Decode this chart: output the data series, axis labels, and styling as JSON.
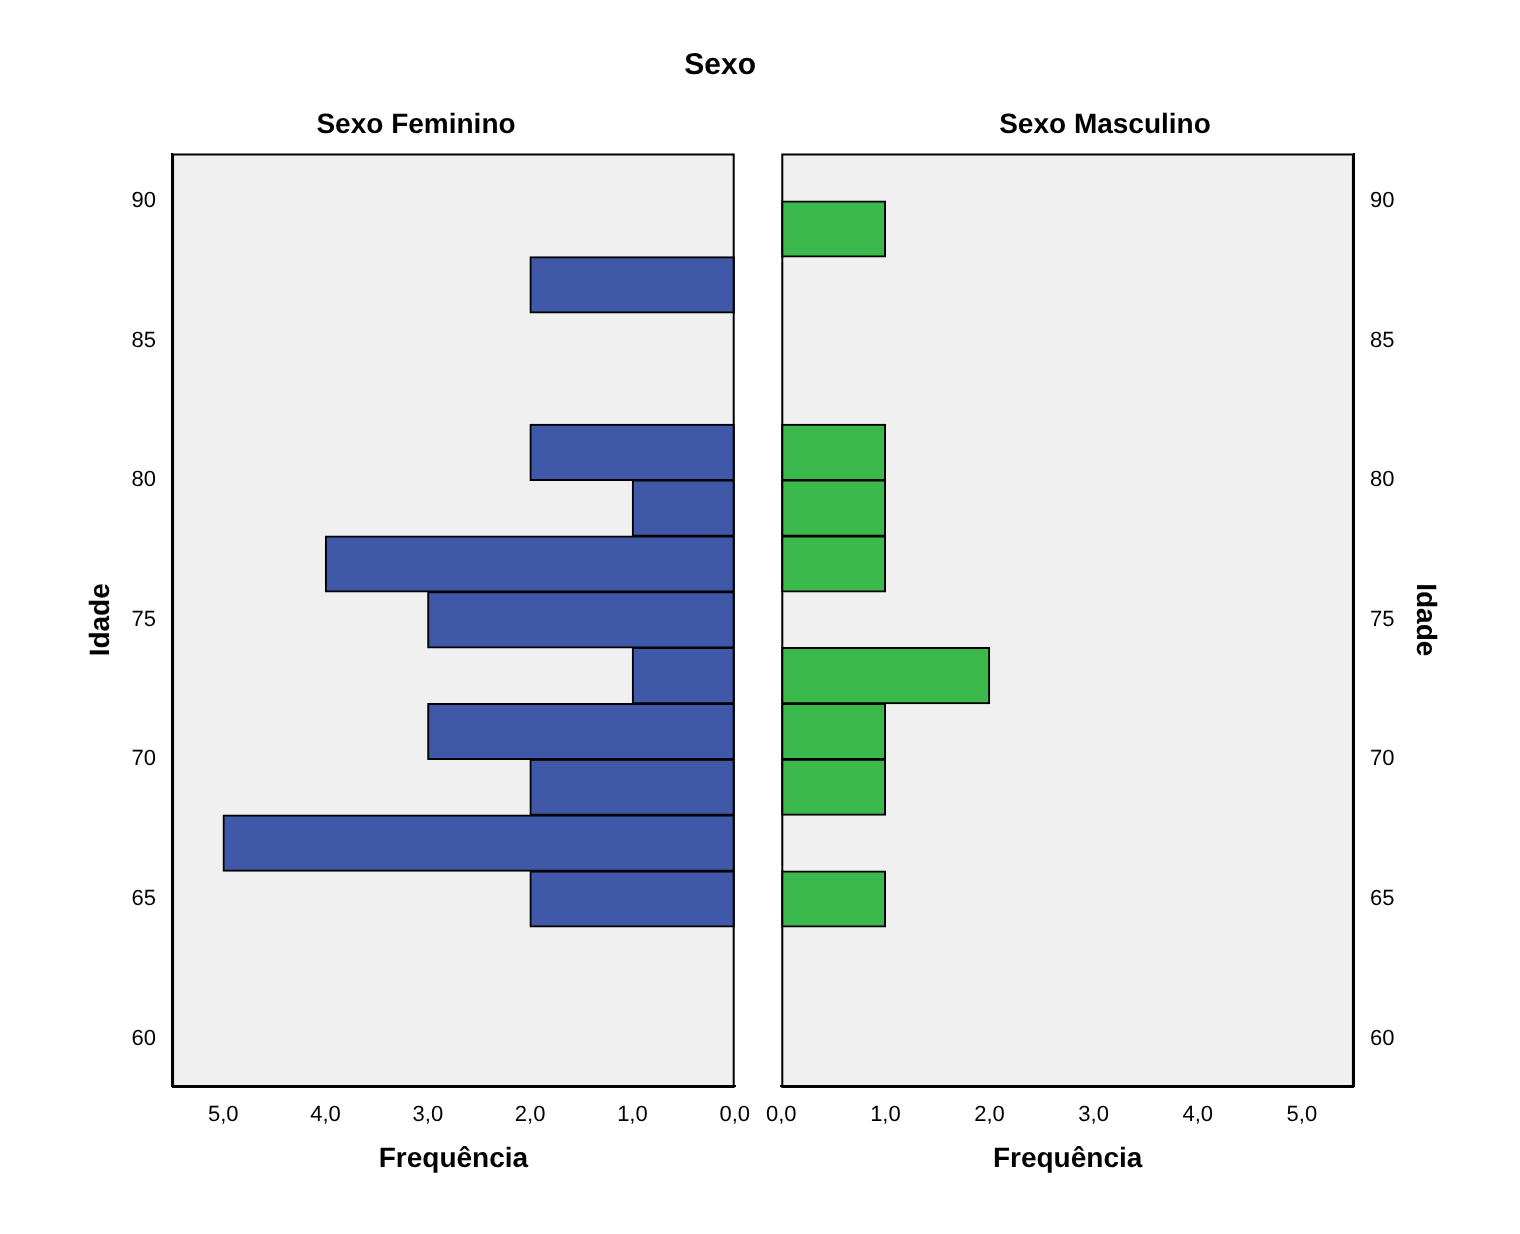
{
  "chart_data": [
    {
      "type": "histogram",
      "orientation": "horizontal",
      "title": "Sexo",
      "subtitle": "Sexo Feminino",
      "xlabel": "Frequência",
      "ylabel": "Idade",
      "color": "#3f58a8",
      "bins": [
        64,
        66,
        68,
        70,
        72,
        74,
        76,
        78,
        80,
        82,
        84,
        86,
        88,
        90
      ],
      "values": [
        2,
        5,
        2,
        3,
        1,
        3,
        4,
        1,
        2,
        0,
        0,
        2,
        0
      ],
      "xlim": [
        5.5,
        0
      ],
      "xticks": [
        {
          "value": 5,
          "label": "5,0"
        },
        {
          "value": 4,
          "label": "4,0"
        },
        {
          "value": 3,
          "label": "3,0"
        },
        {
          "value": 2,
          "label": "2,0"
        },
        {
          "value": 1,
          "label": "1,0"
        },
        {
          "value": 0,
          "label": "0,0"
        }
      ],
      "ylim": [
        58.3,
        91.7
      ],
      "yticks": [
        60,
        65,
        70,
        75,
        80,
        85,
        90
      ]
    },
    {
      "type": "histogram",
      "orientation": "horizontal",
      "subtitle": "Sexo Masculino",
      "xlabel": "Frequência",
      "ylabel": "Idade",
      "color": "#3cb94c",
      "bins": [
        64,
        66,
        68,
        70,
        72,
        74,
        76,
        78,
        80,
        82,
        84,
        86,
        88,
        90
      ],
      "values": [
        1,
        0,
        1,
        1,
        2,
        0,
        1,
        1,
        1,
        0,
        0,
        0,
        1
      ],
      "xlim": [
        0,
        5.5
      ],
      "xticks": [
        {
          "value": 0,
          "label": "0,0"
        },
        {
          "value": 1,
          "label": "1,0"
        },
        {
          "value": 2,
          "label": "2,0"
        },
        {
          "value": 3,
          "label": "3,0"
        },
        {
          "value": 4,
          "label": "4,0"
        },
        {
          "value": 5,
          "label": "5,0"
        }
      ],
      "ylim": [
        58.3,
        91.7
      ],
      "yticks": [
        60,
        65,
        70,
        75,
        80,
        85,
        90
      ]
    }
  ]
}
